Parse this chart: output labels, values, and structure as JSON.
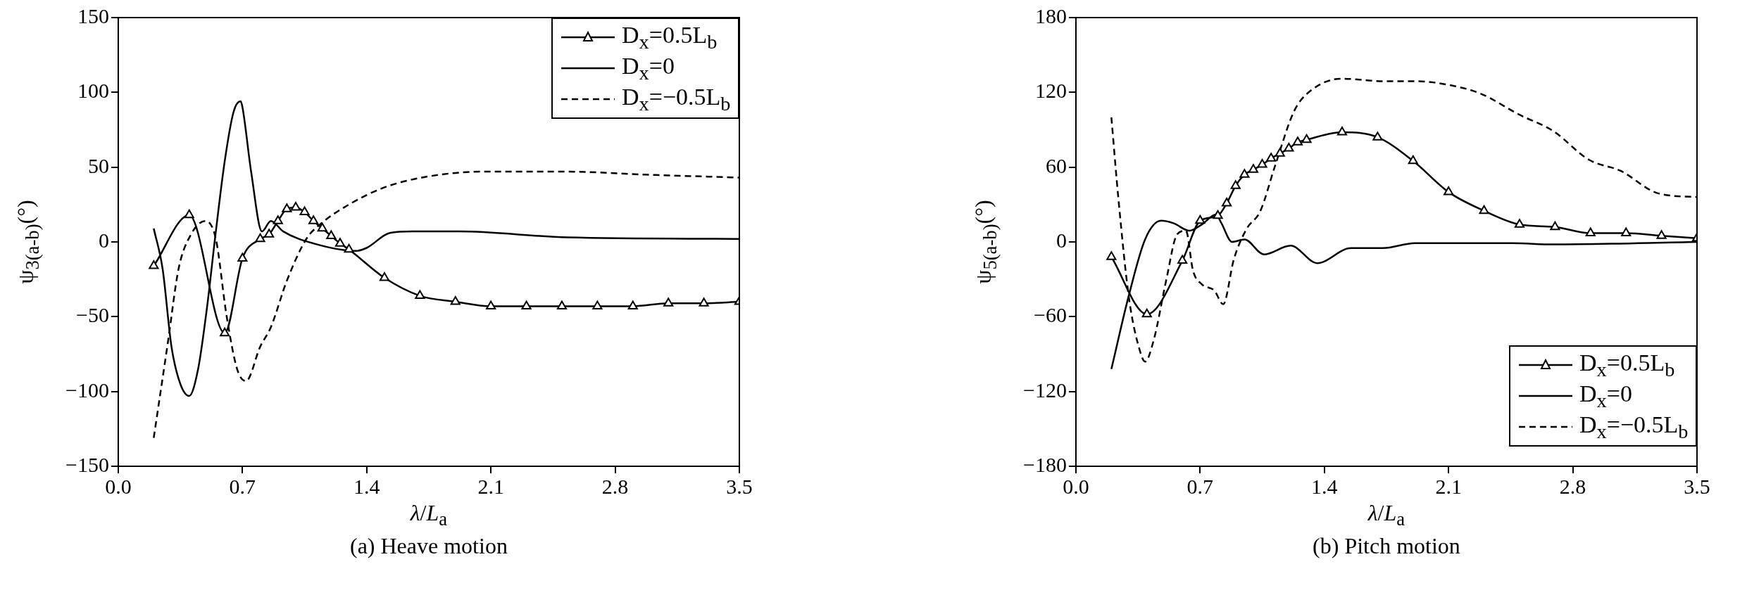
{
  "chart_data": [
    {
      "type": "line",
      "title": "(a) Heave motion",
      "xlabel": "λ/L$_{a}$",
      "ylabel": "ψ$_{3(a-b)}$(°)",
      "xlim": [
        0,
        3.5
      ],
      "xticks": [
        {
          "value": 0,
          "label": "0.0"
        },
        0.7,
        1.4,
        2.1,
        2.8,
        3.5
      ],
      "ylim": [
        -150,
        150
      ],
      "yticks": [
        {
          "value": -150,
          "label": "−150"
        },
        {
          "value": -100,
          "label": "−100"
        },
        {
          "value": -50,
          "label": "−50"
        },
        0,
        50,
        100,
        150
      ],
      "grid": false,
      "legend": "top right",
      "series": [
        {
          "name": "D$_{x}$=0.5L$_{b}$",
          "color": "#000000",
          "marker": "triangle",
          "line_style": "solid",
          "x": [
            0.2,
            0.4,
            0.6,
            0.7,
            0.8,
            0.85,
            0.9,
            0.95,
            1.0,
            1.05,
            1.1,
            1.15,
            1.2,
            1.25,
            1.3,
            1.5,
            1.7,
            1.9,
            2.1,
            2.3,
            2.5,
            2.7,
            2.9,
            3.1,
            3.3,
            3.5
          ],
          "values": [
            -16,
            18,
            -61,
            -11,
            2,
            5,
            14,
            22,
            23,
            20,
            14,
            9,
            4,
            -1,
            -5,
            -24,
            -36,
            -40,
            -43,
            -43,
            -43,
            -43,
            -43,
            -41,
            -41,
            -40
          ]
        },
        {
          "name": "D$_{x}$=0",
          "color": "#000000",
          "marker": "none",
          "line_style": "solid",
          "x": [
            0.2,
            0.25,
            0.3,
            0.35,
            0.4,
            0.45,
            0.5,
            0.55,
            0.6,
            0.65,
            0.69,
            0.7,
            0.75,
            0.81,
            0.86,
            0.93,
            1.1,
            1.34,
            1.4,
            1.53,
            1.66,
            1.92,
            2.53,
            3.5
          ],
          "values": [
            9,
            -18,
            -70,
            -95,
            -103,
            -85,
            -44,
            7,
            54,
            87,
            94,
            90,
            46,
            7,
            14,
            7,
            -1,
            -6,
            -4,
            6,
            7,
            7,
            3,
            2
          ]
        },
        {
          "name": "D$_{x}$=−0.5L$_{b}$",
          "color": "#000000",
          "marker": "none",
          "line_style": "dashed",
          "x": [
            0.2,
            0.28,
            0.34,
            0.41,
            0.49,
            0.55,
            0.61,
            0.67,
            0.72,
            0.8,
            0.86,
            0.95,
            1.06,
            1.14,
            1.3,
            1.49,
            1.71,
            2.05,
            2.53,
            2.97,
            3.5
          ],
          "values": [
            -131,
            -67,
            -18,
            5,
            14,
            2,
            -49,
            -85,
            -93,
            -70,
            -57,
            -26,
            2,
            12,
            25,
            36,
            43,
            47,
            47,
            45,
            43
          ]
        }
      ]
    },
    {
      "type": "line",
      "title": "(b) Pitch motion",
      "xlabel": "λ/L$_{a}$",
      "ylabel": "ψ$_{5(a-b)}$(°)",
      "xlim": [
        0,
        3.5
      ],
      "xticks": [
        {
          "value": 0,
          "label": "0.0"
        },
        0.7,
        1.4,
        2.1,
        2.8,
        3.5
      ],
      "ylim": [
        -180,
        180
      ],
      "yticks": [
        {
          "value": -180,
          "label": "−180"
        },
        {
          "value": -120,
          "label": "−120"
        },
        {
          "value": -60,
          "label": "−60"
        },
        0,
        60,
        120,
        180
      ],
      "grid": false,
      "legend": "bottom right",
      "series": [
        {
          "name": "D$_{x}$=0.5L$_{b}$",
          "color": "#000000",
          "marker": "triangle",
          "line_style": "solid",
          "x": [
            0.2,
            0.4,
            0.6,
            0.7,
            0.8,
            0.85,
            0.9,
            0.95,
            1.0,
            1.05,
            1.1,
            1.15,
            1.2,
            1.25,
            1.3,
            1.5,
            1.7,
            1.9,
            2.1,
            2.3,
            2.5,
            2.7,
            2.9,
            3.1,
            3.3,
            3.5
          ],
          "values": [
            -12,
            -58,
            -15,
            17,
            21,
            31,
            45,
            54,
            58,
            62,
            67,
            71,
            75,
            80,
            82,
            88,
            84,
            65,
            40,
            25,
            14,
            12,
            7,
            7,
            5,
            3
          ]
        },
        {
          "name": "D$_{x}$=0",
          "color": "#000000",
          "marker": "none",
          "line_style": "solid",
          "x": [
            0.2,
            0.3,
            0.39,
            0.48,
            0.55,
            0.64,
            0.71,
            0.79,
            0.82,
            0.88,
            0.95,
            1.06,
            1.21,
            1.36,
            1.55,
            1.73,
            1.91,
            2.46,
            2.69,
            3.5
          ],
          "values": [
            -102,
            -42,
            2,
            17,
            15,
            9,
            14,
            22,
            15,
            0,
            2,
            -10,
            -3,
            -17,
            -5,
            -5,
            -1,
            -1,
            -2,
            0
          ]
        },
        {
          "name": "D$_{x}$=−0.5L$_{b}$",
          "color": "#000000",
          "marker": "none",
          "line_style": "dashed",
          "x": [
            0.2,
            0.24,
            0.3,
            0.36,
            0.39,
            0.44,
            0.51,
            0.57,
            0.62,
            0.66,
            0.71,
            0.78,
            0.83,
            0.89,
            0.96,
            1.04,
            1.12,
            1.23,
            1.32,
            1.5,
            1.73,
            1.91,
            2.1,
            2.28,
            2.5,
            2.69,
            2.89,
            3.07,
            3.28,
            3.5
          ],
          "values": [
            100,
            34,
            -46,
            -87,
            -96,
            -78,
            -30,
            6,
            9,
            -23,
            -34,
            -39,
            -50,
            -14,
            10,
            25,
            60,
            105,
            121,
            131,
            129,
            129,
            126,
            119,
            102,
            89,
            66,
            57,
            39,
            36
          ]
        }
      ]
    }
  ]
}
